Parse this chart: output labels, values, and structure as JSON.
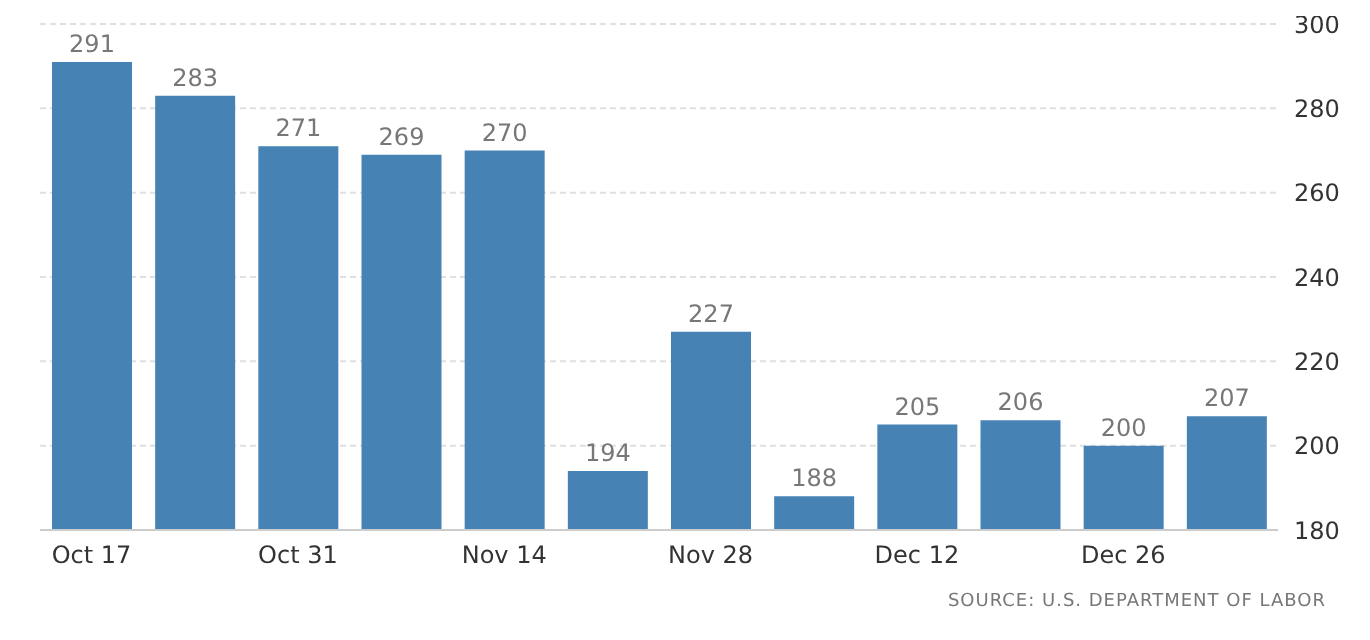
{
  "chart_data": {
    "type": "bar",
    "categories": [
      "Oct 17",
      null,
      "Oct 31",
      null,
      "Nov 14",
      null,
      "Nov 28",
      null,
      "Dec 12",
      null,
      "Dec 26",
      null
    ],
    "values": [
      291,
      283,
      271,
      269,
      270,
      194,
      227,
      188,
      205,
      206,
      200,
      207
    ],
    "color": "#4682b4",
    "ylim": [
      180,
      300
    ],
    "yticks": [
      180,
      200,
      220,
      240,
      260,
      280,
      300
    ],
    "grid": "y",
    "data_labels": true,
    "annotations": [
      "SOURCE: U.S. DEPARTMENT OF LABOR"
    ]
  }
}
